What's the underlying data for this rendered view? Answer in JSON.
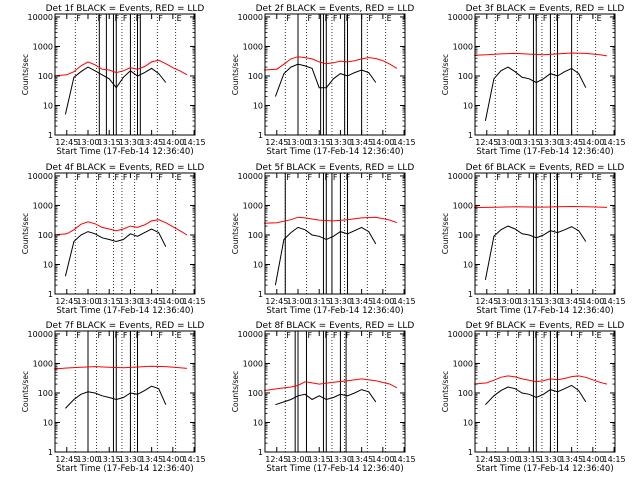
{
  "figure": {
    "background": "#ffffff",
    "colors": {
      "events": "#000000",
      "lld": "#ff0000",
      "frame": "#000000",
      "marker": "#000000"
    }
  },
  "shared": {
    "ylabel": "Counts/sec",
    "xlabel": "Start Time (17-Feb-14 12:36:40)",
    "x_ticks": [
      "12:45",
      "13:00",
      "13:15",
      "13:30",
      "13:45",
      "14:00",
      "14:15"
    ],
    "y_ticks": [
      "1",
      "10",
      "100",
      "1000",
      "10000"
    ],
    "x_range_minutes": [
      0,
      99
    ],
    "y_range_log10": [
      0,
      4.1
    ],
    "dotted_lines_x": [
      "12:51",
      "13:06",
      "13:18",
      "13:24",
      "13:33",
      "13:49",
      "14:02"
    ],
    "corner_tick_labels": [
      "F",
      "F",
      "F",
      "F",
      "F",
      "F",
      "E"
    ]
  },
  "chart_data": [
    {
      "type": "line",
      "title": "Det 1f BLACK = Events, RED = LLD",
      "ylim": [
        1,
        12000
      ],
      "solid_lines_x": [
        "13:08",
        "13:13",
        "13:18",
        "13:20",
        "13:30",
        "13:35",
        "13:37"
      ],
      "series": [
        {
          "name": "Events",
          "x": [
            "12:44",
            "12:50",
            "12:55",
            "13:00",
            "13:05",
            "13:10",
            "13:15",
            "13:20",
            "13:25",
            "13:30",
            "13:35",
            "13:40",
            "13:45",
            "13:50",
            "13:55"
          ],
          "y": [
            5,
            90,
            140,
            200,
            150,
            110,
            80,
            40,
            90,
            150,
            100,
            130,
            180,
            120,
            60
          ]
        },
        {
          "name": "LLD",
          "x": [
            "12:36",
            "12:40",
            "12:45",
            "12:50",
            "12:55",
            "13:00",
            "13:05",
            "13:10",
            "13:15",
            "13:20",
            "13:25",
            "13:30",
            "13:35",
            "13:40",
            "13:45",
            "13:50",
            "13:55",
            "14:00",
            "14:05",
            "14:10"
          ],
          "y": [
            100,
            105,
            110,
            140,
            220,
            300,
            240,
            170,
            160,
            130,
            150,
            190,
            170,
            210,
            300,
            340,
            260,
            190,
            150,
            110
          ]
        }
      ]
    },
    {
      "type": "line",
      "title": "Det 2f BLACK = Events, RED = LLD",
      "ylim": [
        1,
        12000
      ],
      "solid_lines_x": [
        "13:00",
        "13:16",
        "13:18",
        "13:20",
        "13:33",
        "13:35",
        "13:45"
      ],
      "series": [
        {
          "name": "Events",
          "x": [
            "12:44",
            "12:50",
            "12:55",
            "13:00",
            "13:05",
            "13:10",
            "13:15",
            "13:20",
            "13:25",
            "13:30",
            "13:35",
            "13:40",
            "13:45",
            "13:50",
            "13:55"
          ],
          "y": [
            20,
            120,
            200,
            250,
            220,
            180,
            40,
            40,
            80,
            120,
            100,
            130,
            160,
            130,
            60
          ]
        },
        {
          "name": "LLD",
          "x": [
            "12:36",
            "12:40",
            "12:45",
            "12:50",
            "12:55",
            "13:00",
            "13:05",
            "13:10",
            "13:15",
            "13:20",
            "13:25",
            "13:30",
            "13:35",
            "13:40",
            "13:45",
            "13:50",
            "13:55",
            "14:00",
            "14:05",
            "14:10"
          ],
          "y": [
            160,
            165,
            170,
            250,
            380,
            450,
            420,
            380,
            300,
            260,
            280,
            320,
            300,
            330,
            380,
            420,
            390,
            330,
            250,
            180
          ]
        }
      ]
    },
    {
      "type": "line",
      "title": "Det 3f BLACK = Events, RED = LLD",
      "ylim": [
        1,
        12000
      ],
      "solid_lines_x": [
        "13:18",
        "13:20",
        "13:30",
        "13:35",
        "13:45"
      ],
      "series": [
        {
          "name": "Events",
          "x": [
            "12:44",
            "12:50",
            "12:55",
            "13:00",
            "13:05",
            "13:10",
            "13:15",
            "13:20",
            "13:25",
            "13:30",
            "13:35",
            "13:40",
            "13:45",
            "13:50",
            "13:55"
          ],
          "y": [
            3,
            80,
            150,
            200,
            140,
            90,
            80,
            60,
            80,
            120,
            100,
            140,
            180,
            120,
            40
          ]
        },
        {
          "name": "LLD",
          "x": [
            "12:36",
            "12:45",
            "12:55",
            "13:05",
            "13:15",
            "13:25",
            "13:35",
            "13:45",
            "13:55",
            "14:05",
            "14:10"
          ],
          "y": [
            500,
            520,
            560,
            580,
            550,
            520,
            560,
            600,
            580,
            520,
            480
          ]
        }
      ]
    },
    {
      "type": "line",
      "title": "Det 4f BLACK = Events, RED = LLD",
      "ylim": [
        1,
        12000
      ],
      "solid_lines_x": [],
      "series": [
        {
          "name": "Events",
          "x": [
            "12:44",
            "12:50",
            "12:55",
            "13:00",
            "13:05",
            "13:10",
            "13:15",
            "13:20",
            "13:25",
            "13:30",
            "13:35",
            "13:40",
            "13:45",
            "13:50",
            "13:55"
          ],
          "y": [
            4,
            60,
            100,
            130,
            110,
            80,
            70,
            60,
            70,
            110,
            90,
            120,
            160,
            120,
            40
          ]
        },
        {
          "name": "LLD",
          "x": [
            "12:36",
            "12:40",
            "12:45",
            "12:50",
            "12:55",
            "13:00",
            "13:05",
            "13:10",
            "13:15",
            "13:20",
            "13:25",
            "13:30",
            "13:35",
            "13:40",
            "13:45",
            "13:50",
            "13:55",
            "14:00",
            "14:05",
            "14:10"
          ],
          "y": [
            100,
            105,
            110,
            150,
            230,
            280,
            240,
            180,
            160,
            140,
            160,
            200,
            180,
            220,
            300,
            330,
            260,
            190,
            140,
            100
          ]
        }
      ]
    },
    {
      "type": "line",
      "title": "Det 5f BLACK = Events, RED = LLD",
      "ylim": [
        1,
        12000
      ],
      "solid_lines_x": [
        "12:51",
        "13:18",
        "13:20",
        "13:24",
        "13:30",
        "13:35"
      ],
      "series": [
        {
          "name": "Events",
          "x": [
            "12:44",
            "12:50",
            "12:55",
            "13:00",
            "13:05",
            "13:10",
            "13:15",
            "13:20",
            "13:25",
            "13:30",
            "13:35",
            "13:40",
            "13:45",
            "13:50",
            "13:55"
          ],
          "y": [
            2,
            70,
            120,
            180,
            150,
            100,
            90,
            70,
            90,
            130,
            110,
            140,
            180,
            130,
            50
          ]
        },
        {
          "name": "LLD",
          "x": [
            "12:36",
            "12:45",
            "12:55",
            "13:00",
            "13:05",
            "13:15",
            "13:25",
            "13:35",
            "13:45",
            "13:55",
            "14:05",
            "14:10"
          ],
          "y": [
            250,
            260,
            330,
            400,
            380,
            320,
            300,
            330,
            380,
            400,
            320,
            260
          ]
        }
      ]
    },
    {
      "type": "line",
      "title": "Det 6f BLACK = Events, RED = LLD",
      "ylim": [
        1,
        12000
      ],
      "solid_lines_x": [
        "13:18",
        "13:20",
        "13:30",
        "13:35"
      ],
      "series": [
        {
          "name": "Events",
          "x": [
            "12:44",
            "12:50",
            "12:55",
            "13:00",
            "13:05",
            "13:10",
            "13:15",
            "13:20",
            "13:25",
            "13:30",
            "13:35",
            "13:40",
            "13:45",
            "13:50",
            "13:55"
          ],
          "y": [
            3,
            90,
            150,
            200,
            160,
            110,
            100,
            80,
            100,
            140,
            120,
            150,
            190,
            140,
            60
          ]
        },
        {
          "name": "LLD",
          "x": [
            "12:36",
            "12:45",
            "12:55",
            "13:05",
            "13:15",
            "13:25",
            "13:35",
            "13:45",
            "13:55",
            "14:05",
            "14:10"
          ],
          "y": [
            850,
            860,
            880,
            900,
            890,
            880,
            900,
            920,
            910,
            880,
            860
          ]
        }
      ]
    },
    {
      "type": "line",
      "title": "Det 7f BLACK = Events, RED = LLD",
      "ylim": [
        1,
        12000
      ],
      "solid_lines_x": [
        "13:00",
        "13:18",
        "13:20",
        "13:30",
        "13:35"
      ],
      "series": [
        {
          "name": "Events",
          "x": [
            "12:44",
            "12:50",
            "12:55",
            "13:00",
            "13:05",
            "13:10",
            "13:15",
            "13:20",
            "13:25",
            "13:30",
            "13:35",
            "13:40",
            "13:45",
            "13:50",
            "13:55"
          ],
          "y": [
            30,
            60,
            90,
            110,
            100,
            80,
            70,
            60,
            70,
            100,
            90,
            120,
            170,
            140,
            40
          ]
        },
        {
          "name": "LLD",
          "x": [
            "12:36",
            "12:45",
            "12:55",
            "13:05",
            "13:15",
            "13:25",
            "13:35",
            "13:45",
            "13:55",
            "14:05",
            "14:10"
          ],
          "y": [
            650,
            700,
            750,
            780,
            740,
            720,
            760,
            800,
            780,
            720,
            680
          ]
        }
      ]
    },
    {
      "type": "line",
      "title": "Det 8f BLACK = Events, RED = LLD",
      "ylim": [
        1,
        12000
      ],
      "solid_lines_x": [
        "12:58",
        "13:00",
        "13:06",
        "13:18",
        "13:20",
        "13:30",
        "13:34"
      ],
      "series": [
        {
          "name": "Events",
          "x": [
            "12:44",
            "12:50",
            "12:55",
            "13:00",
            "13:05",
            "13:10",
            "13:15",
            "13:20",
            "13:25",
            "13:30",
            "13:35",
            "13:40",
            "13:45",
            "13:50",
            "13:55"
          ],
          "y": [
            40,
            50,
            60,
            80,
            90,
            60,
            80,
            60,
            70,
            90,
            80,
            100,
            130,
            110,
            50
          ]
        },
        {
          "name": "LLD",
          "x": [
            "12:36",
            "12:45",
            "12:55",
            "13:00",
            "13:05",
            "13:10",
            "13:15",
            "13:25",
            "13:35",
            "13:45",
            "13:55",
            "14:05",
            "14:10"
          ],
          "y": [
            120,
            140,
            160,
            180,
            240,
            220,
            200,
            230,
            260,
            300,
            260,
            200,
            150
          ]
        }
      ]
    },
    {
      "type": "line",
      "title": "Det 9f BLACK = Events, RED = LLD",
      "ylim": [
        1,
        12000
      ],
      "solid_lines_x": [
        "13:18",
        "13:20",
        "13:30",
        "13:35"
      ],
      "series": [
        {
          "name": "Events",
          "x": [
            "12:44",
            "12:50",
            "12:55",
            "13:00",
            "13:05",
            "13:10",
            "13:15",
            "13:20",
            "13:25",
            "13:30",
            "13:35",
            "13:40",
            "13:45",
            "13:50",
            "13:55"
          ],
          "y": [
            40,
            80,
            120,
            160,
            140,
            100,
            90,
            70,
            90,
            130,
            110,
            140,
            180,
            120,
            50
          ]
        },
        {
          "name": "LLD",
          "x": [
            "12:36",
            "12:40",
            "12:45",
            "12:50",
            "12:55",
            "13:00",
            "13:05",
            "13:10",
            "13:15",
            "13:20",
            "13:25",
            "13:30",
            "13:35",
            "13:40",
            "13:45",
            "13:50",
            "13:55",
            "14:00",
            "14:05",
            "14:10"
          ],
          "y": [
            200,
            210,
            220,
            270,
            340,
            380,
            350,
            300,
            270,
            240,
            260,
            300,
            280,
            310,
            360,
            380,
            340,
            280,
            230,
            200
          ]
        }
      ]
    }
  ]
}
